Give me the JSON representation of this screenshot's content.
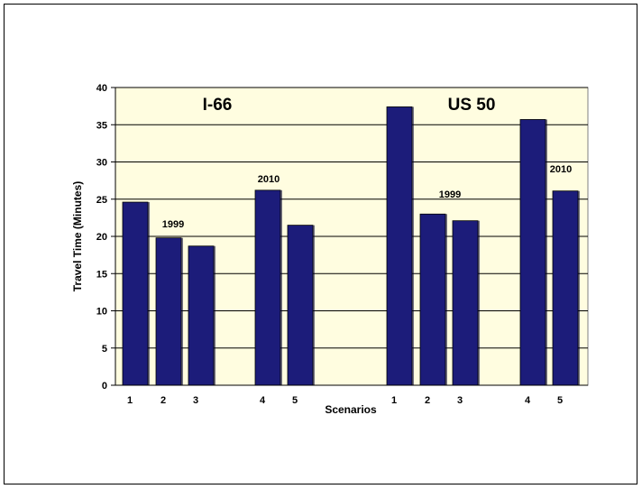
{
  "chart_data": {
    "type": "bar",
    "xlabel": "Scenarios",
    "ylabel": "Travel Time (Minutes)",
    "ylim": [
      0,
      40
    ],
    "yticks": [
      0,
      5,
      10,
      15,
      20,
      25,
      30,
      35,
      40
    ],
    "grid": true,
    "colors": {
      "bar": "#1c1c7a",
      "plot_bg": "#fffde0",
      "grid": "#000000"
    },
    "groups": [
      {
        "name": "I-66",
        "bars": [
          {
            "scenario": "1",
            "value": 24.6
          },
          {
            "scenario": "2",
            "value": 19.8
          },
          {
            "scenario": "3",
            "value": 18.7
          },
          {
            "scenario": "4",
            "value": 26.2
          },
          {
            "scenario": "5",
            "value": 21.5
          }
        ],
        "annotations": [
          "1999",
          "2010"
        ]
      },
      {
        "name": "US 50",
        "bars": [
          {
            "scenario": "1",
            "value": 37.4
          },
          {
            "scenario": "2",
            "value": 23.0
          },
          {
            "scenario": "3",
            "value": 22.1
          },
          {
            "scenario": "4",
            "value": 35.7
          },
          {
            "scenario": "5",
            "value": 26.1
          }
        ],
        "annotations": [
          "1999",
          "2010"
        ]
      }
    ]
  }
}
